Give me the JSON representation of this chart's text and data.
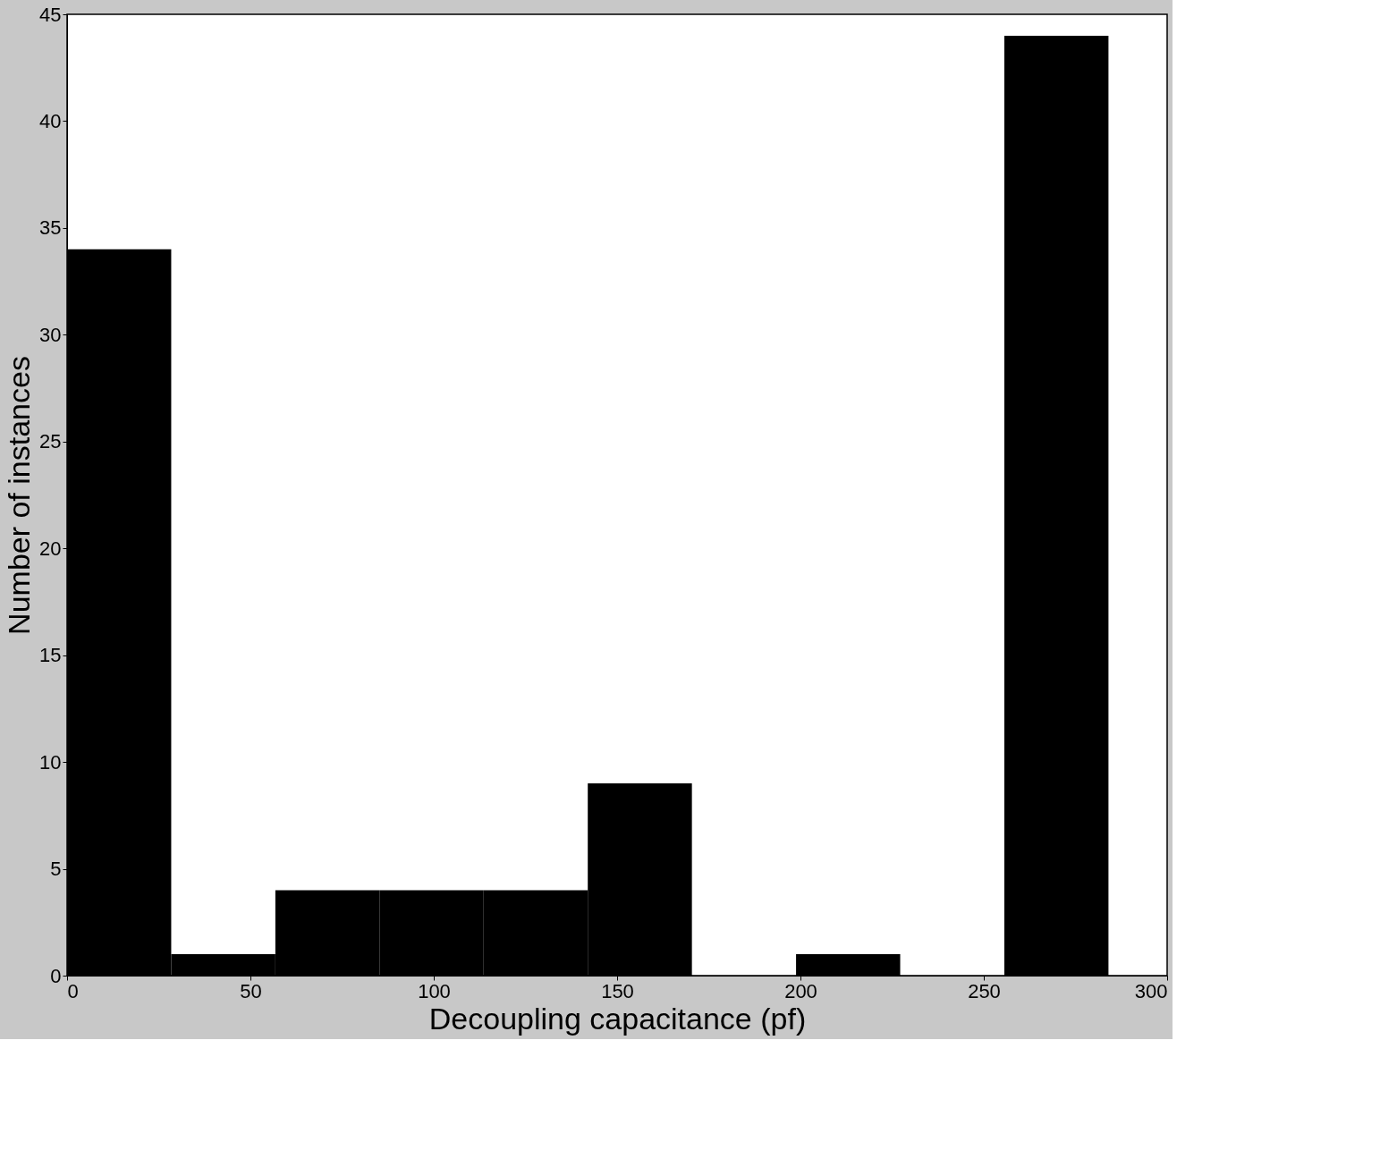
{
  "chart_data": {
    "type": "histogram",
    "xlabel": "Decoupling capacitance (pf)",
    "ylabel": "Number of instances",
    "bins": [
      0,
      28.4,
      56.8,
      85.2,
      113.6,
      142,
      170.4,
      198.8,
      227.2,
      255.6,
      284
    ],
    "values": [
      34,
      1,
      4,
      4,
      4,
      9,
      0,
      1,
      0,
      44
    ],
    "color": "#000000",
    "xlim": [
      0,
      300
    ],
    "xticks": [
      0,
      50,
      100,
      150,
      200,
      250,
      300
    ],
    "ylim": [
      0,
      45
    ],
    "yticks": [
      0,
      5,
      10,
      15,
      20,
      25,
      30,
      35,
      40,
      45
    ],
    "grid": false
  }
}
